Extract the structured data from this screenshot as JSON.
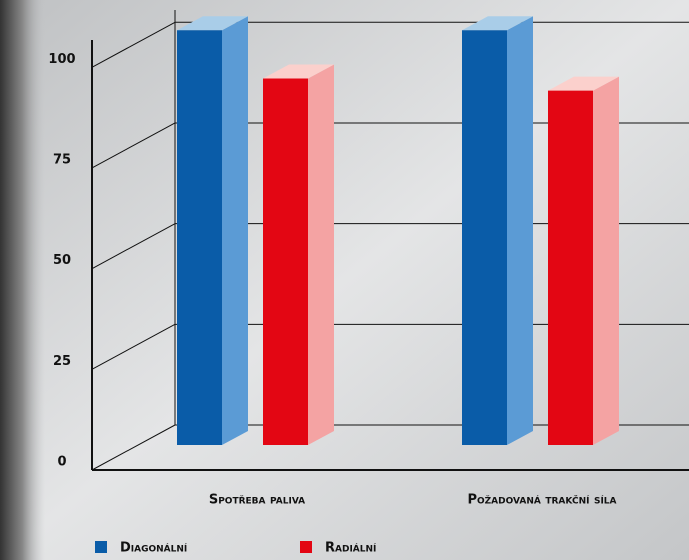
{
  "chart_data": {
    "type": "bar3d",
    "categories": [
      "Spotřeba paliva",
      "Požadovaná trakční síla"
    ],
    "series": [
      {
        "name": "Diagonální",
        "color": "#0a5ca8",
        "values": [
          103,
          103
        ]
      },
      {
        "name": "Radiální",
        "color": "#e30613",
        "values": [
          91,
          88
        ]
      }
    ],
    "ylim": [
      0,
      110
    ],
    "yticks": [
      0,
      25,
      50,
      75,
      100
    ],
    "grid": true
  }
}
